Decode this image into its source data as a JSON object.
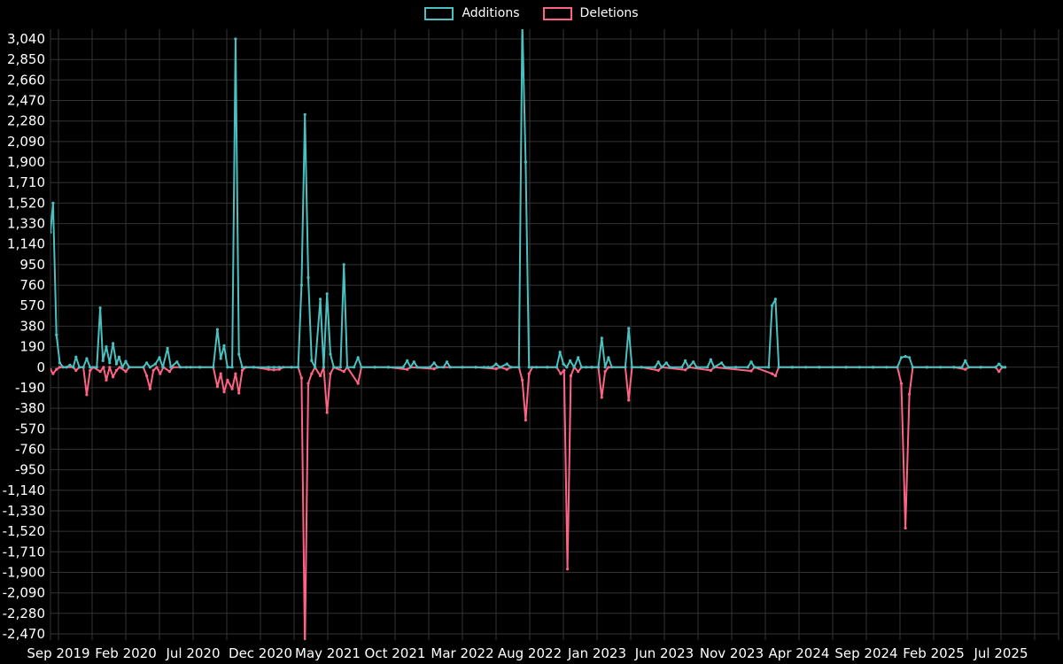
{
  "page": {
    "background": "#000000",
    "text_color": "#ffffff",
    "grid_color": "#333333"
  },
  "chart_data": {
    "type": "line",
    "title": "",
    "legend": [
      {
        "label": "Additions",
        "color": "#4bc0c0"
      },
      {
        "label": "Deletions",
        "color": "#ff6384"
      }
    ],
    "x_axis": {
      "labels": [
        "Sep 2019",
        "Feb 2020",
        "Jul 2020",
        "Dec 2020",
        "May 2021",
        "Oct 2021",
        "Mar 2022",
        "Aug 2022",
        "Jan 2023",
        "Jun 2023",
        "Nov 2023",
        "Apr 2024",
        "Sep 2024",
        "Feb 2025",
        "Jul 2025"
      ],
      "label_interval_months": 5
    },
    "y_axis": {
      "min": -2470,
      "max": 3040,
      "step": 190
    },
    "series": [
      {
        "name": "Additions",
        "color": "#4bc0c0",
        "points": [
          [
            -0.6,
            1250
          ],
          [
            -0.4,
            1520
          ],
          [
            -0.15,
            300
          ],
          [
            0.1,
            40
          ],
          [
            0.35,
            0
          ],
          [
            0.6,
            0
          ],
          [
            0.85,
            20
          ],
          [
            1.1,
            0
          ],
          [
            1.3,
            95
          ],
          [
            1.55,
            0
          ],
          [
            1.85,
            0
          ],
          [
            2.1,
            80
          ],
          [
            2.35,
            0
          ],
          [
            2.85,
            0
          ],
          [
            3.1,
            550
          ],
          [
            3.3,
            60
          ],
          [
            3.55,
            190
          ],
          [
            3.8,
            40
          ],
          [
            4.05,
            220
          ],
          [
            4.3,
            30
          ],
          [
            4.5,
            95
          ],
          [
            4.75,
            0
          ],
          [
            5.0,
            55
          ],
          [
            5.25,
            0
          ],
          [
            6.3,
            0
          ],
          [
            6.55,
            40
          ],
          [
            6.8,
            0
          ],
          [
            7.2,
            30
          ],
          [
            7.5,
            90
          ],
          [
            7.75,
            0
          ],
          [
            8.1,
            175
          ],
          [
            8.35,
            0
          ],
          [
            8.8,
            50
          ],
          [
            9.05,
            0
          ],
          [
            9.8,
            0
          ],
          [
            10.5,
            0
          ],
          [
            11.5,
            0
          ],
          [
            11.8,
            350
          ],
          [
            12.05,
            80
          ],
          [
            12.3,
            200
          ],
          [
            12.55,
            0
          ],
          [
            12.9,
            0
          ],
          [
            13.15,
            3040
          ],
          [
            13.4,
            120
          ],
          [
            13.65,
            0
          ],
          [
            14.5,
            0
          ],
          [
            15.6,
            0
          ],
          [
            16.0,
            0
          ],
          [
            16.4,
            0
          ],
          [
            17.3,
            0
          ],
          [
            17.8,
            0
          ],
          [
            18.05,
            760
          ],
          [
            18.3,
            2340
          ],
          [
            18.55,
            830
          ],
          [
            18.8,
            60
          ],
          [
            19.05,
            0
          ],
          [
            19.45,
            630
          ],
          [
            19.7,
            0
          ],
          [
            19.95,
            680
          ],
          [
            20.2,
            120
          ],
          [
            20.45,
            0
          ],
          [
            20.95,
            0
          ],
          [
            21.2,
            950
          ],
          [
            21.45,
            0
          ],
          [
            21.95,
            0
          ],
          [
            22.25,
            90
          ],
          [
            22.5,
            0
          ],
          [
            23.5,
            0
          ],
          [
            24.5,
            0
          ],
          [
            25.6,
            0
          ],
          [
            25.9,
            60
          ],
          [
            26.15,
            0
          ],
          [
            26.4,
            50
          ],
          [
            26.65,
            0
          ],
          [
            27.6,
            0
          ],
          [
            27.9,
            40
          ],
          [
            28.15,
            0
          ],
          [
            28.6,
            0
          ],
          [
            28.85,
            50
          ],
          [
            29.1,
            0
          ],
          [
            30.0,
            0
          ],
          [
            31.0,
            0
          ],
          [
            31.6,
            0
          ],
          [
            31.9,
            0
          ],
          [
            32.2,
            0
          ],
          [
            32.5,
            30
          ],
          [
            32.8,
            0
          ],
          [
            33.3,
            30
          ],
          [
            33.6,
            0
          ],
          [
            34.2,
            0
          ],
          [
            34.45,
            3200
          ],
          [
            34.7,
            1900
          ],
          [
            34.95,
            0
          ],
          [
            35.5,
            0
          ],
          [
            36.3,
            0
          ],
          [
            37.0,
            0
          ],
          [
            37.25,
            140
          ],
          [
            37.5,
            30
          ],
          [
            37.75,
            0
          ],
          [
            38.0,
            60
          ],
          [
            38.3,
            0
          ],
          [
            38.6,
            90
          ],
          [
            38.85,
            0
          ],
          [
            39.2,
            0
          ],
          [
            39.6,
            0
          ],
          [
            40.1,
            0
          ],
          [
            40.35,
            270
          ],
          [
            40.6,
            0
          ],
          [
            40.85,
            90
          ],
          [
            41.1,
            0
          ],
          [
            42.1,
            0
          ],
          [
            42.35,
            360
          ],
          [
            42.6,
            0
          ],
          [
            43.3,
            0
          ],
          [
            44.3,
            0
          ],
          [
            44.55,
            50
          ],
          [
            44.8,
            0
          ],
          [
            45.15,
            40
          ],
          [
            45.4,
            0
          ],
          [
            46.3,
            0
          ],
          [
            46.55,
            60
          ],
          [
            46.8,
            0
          ],
          [
            47.15,
            50
          ],
          [
            47.4,
            0
          ],
          [
            48.2,
            0
          ],
          [
            48.45,
            70
          ],
          [
            48.7,
            0
          ],
          [
            49.25,
            40
          ],
          [
            49.5,
            0
          ],
          [
            50.3,
            0
          ],
          [
            51.2,
            0
          ],
          [
            51.45,
            50
          ],
          [
            51.7,
            0
          ],
          [
            52.75,
            0
          ],
          [
            53.0,
            570
          ],
          [
            53.25,
            630
          ],
          [
            53.5,
            0
          ],
          [
            54.5,
            0
          ],
          [
            55.5,
            0
          ],
          [
            56.5,
            0
          ],
          [
            57.5,
            0
          ],
          [
            58.5,
            0
          ],
          [
            59.5,
            0
          ],
          [
            60.5,
            0
          ],
          [
            61.5,
            0
          ],
          [
            62.3,
            0
          ],
          [
            62.6,
            90
          ],
          [
            62.9,
            100
          ],
          [
            63.2,
            90
          ],
          [
            63.45,
            0
          ],
          [
            64.5,
            0
          ],
          [
            65.5,
            0
          ],
          [
            66.5,
            0
          ],
          [
            67.1,
            0
          ],
          [
            67.35,
            60
          ],
          [
            67.6,
            0
          ],
          [
            68.5,
            0
          ],
          [
            69.6,
            0
          ],
          [
            69.85,
            30
          ],
          [
            70.1,
            0
          ],
          [
            70.3,
            0
          ]
        ]
      },
      {
        "name": "Deletions",
        "color": "#ff6384",
        "points": [
          [
            -0.6,
            -20
          ],
          [
            -0.4,
            -60
          ],
          [
            -0.15,
            -20
          ],
          [
            0.1,
            0
          ],
          [
            0.6,
            0
          ],
          [
            1.1,
            0
          ],
          [
            1.3,
            -30
          ],
          [
            1.55,
            0
          ],
          [
            1.85,
            0
          ],
          [
            2.1,
            -255
          ],
          [
            2.35,
            -30
          ],
          [
            2.6,
            0
          ],
          [
            3.1,
            -40
          ],
          [
            3.35,
            0
          ],
          [
            3.55,
            -120
          ],
          [
            3.8,
            0
          ],
          [
            4.05,
            -90
          ],
          [
            4.3,
            -30
          ],
          [
            4.55,
            0
          ],
          [
            5.0,
            -40
          ],
          [
            5.25,
            0
          ],
          [
            6.3,
            0
          ],
          [
            6.55,
            -80
          ],
          [
            6.8,
            -200
          ],
          [
            7.05,
            -30
          ],
          [
            7.3,
            0
          ],
          [
            7.55,
            -60
          ],
          [
            7.8,
            0
          ],
          [
            8.25,
            -40
          ],
          [
            8.5,
            0
          ],
          [
            9.5,
            0
          ],
          [
            10.5,
            0
          ],
          [
            11.5,
            0
          ],
          [
            11.8,
            -180
          ],
          [
            12.05,
            -60
          ],
          [
            12.3,
            -230
          ],
          [
            12.55,
            -120
          ],
          [
            12.9,
            -200
          ],
          [
            13.15,
            -60
          ],
          [
            13.4,
            -240
          ],
          [
            13.65,
            -30
          ],
          [
            13.9,
            0
          ],
          [
            14.5,
            0
          ],
          [
            15.6,
            -20
          ],
          [
            16.0,
            -25
          ],
          [
            16.4,
            -20
          ],
          [
            16.7,
            0
          ],
          [
            17.3,
            0
          ],
          [
            17.8,
            0
          ],
          [
            18.05,
            -100
          ],
          [
            18.3,
            -2600
          ],
          [
            18.55,
            -150
          ],
          [
            18.8,
            -60
          ],
          [
            19.05,
            0
          ],
          [
            19.45,
            -80
          ],
          [
            19.7,
            0
          ],
          [
            19.95,
            -420
          ],
          [
            20.2,
            -60
          ],
          [
            20.45,
            0
          ],
          [
            21.2,
            -40
          ],
          [
            21.45,
            0
          ],
          [
            22.25,
            -150
          ],
          [
            22.5,
            0
          ],
          [
            23.5,
            0
          ],
          [
            24.5,
            0
          ],
          [
            25.9,
            -20
          ],
          [
            26.15,
            0
          ],
          [
            27.9,
            -15
          ],
          [
            28.15,
            0
          ],
          [
            30.0,
            0
          ],
          [
            31.0,
            0
          ],
          [
            32.5,
            -15
          ],
          [
            32.8,
            0
          ],
          [
            33.3,
            -20
          ],
          [
            33.6,
            0
          ],
          [
            34.2,
            0
          ],
          [
            34.45,
            -120
          ],
          [
            34.7,
            -490
          ],
          [
            34.95,
            -60
          ],
          [
            35.2,
            0
          ],
          [
            36.3,
            0
          ],
          [
            37.0,
            0
          ],
          [
            37.3,
            -60
          ],
          [
            37.55,
            -30
          ],
          [
            37.8,
            -1870
          ],
          [
            38.05,
            -80
          ],
          [
            38.3,
            0
          ],
          [
            38.6,
            -40
          ],
          [
            38.85,
            0
          ],
          [
            39.6,
            0
          ],
          [
            40.1,
            0
          ],
          [
            40.35,
            -280
          ],
          [
            40.6,
            -40
          ],
          [
            40.85,
            0
          ],
          [
            42.1,
            0
          ],
          [
            42.35,
            -305
          ],
          [
            42.6,
            0
          ],
          [
            43.3,
            0
          ],
          [
            44.55,
            -30
          ],
          [
            44.8,
            0
          ],
          [
            46.55,
            -25
          ],
          [
            46.8,
            0
          ],
          [
            48.45,
            -30
          ],
          [
            48.7,
            0
          ],
          [
            51.45,
            -35
          ],
          [
            51.7,
            0
          ],
          [
            53.0,
            -60
          ],
          [
            53.25,
            -80
          ],
          [
            53.5,
            0
          ],
          [
            54.5,
            0
          ],
          [
            56.5,
            0
          ],
          [
            58.5,
            0
          ],
          [
            60.5,
            0
          ],
          [
            62.3,
            0
          ],
          [
            62.6,
            -150
          ],
          [
            62.9,
            -1490
          ],
          [
            63.2,
            -250
          ],
          [
            63.45,
            0
          ],
          [
            64.5,
            0
          ],
          [
            66.5,
            0
          ],
          [
            67.35,
            -20
          ],
          [
            67.6,
            0
          ],
          [
            68.5,
            0
          ],
          [
            69.6,
            0
          ],
          [
            69.85,
            -40
          ],
          [
            70.1,
            0
          ],
          [
            70.3,
            0
          ]
        ]
      }
    ]
  }
}
